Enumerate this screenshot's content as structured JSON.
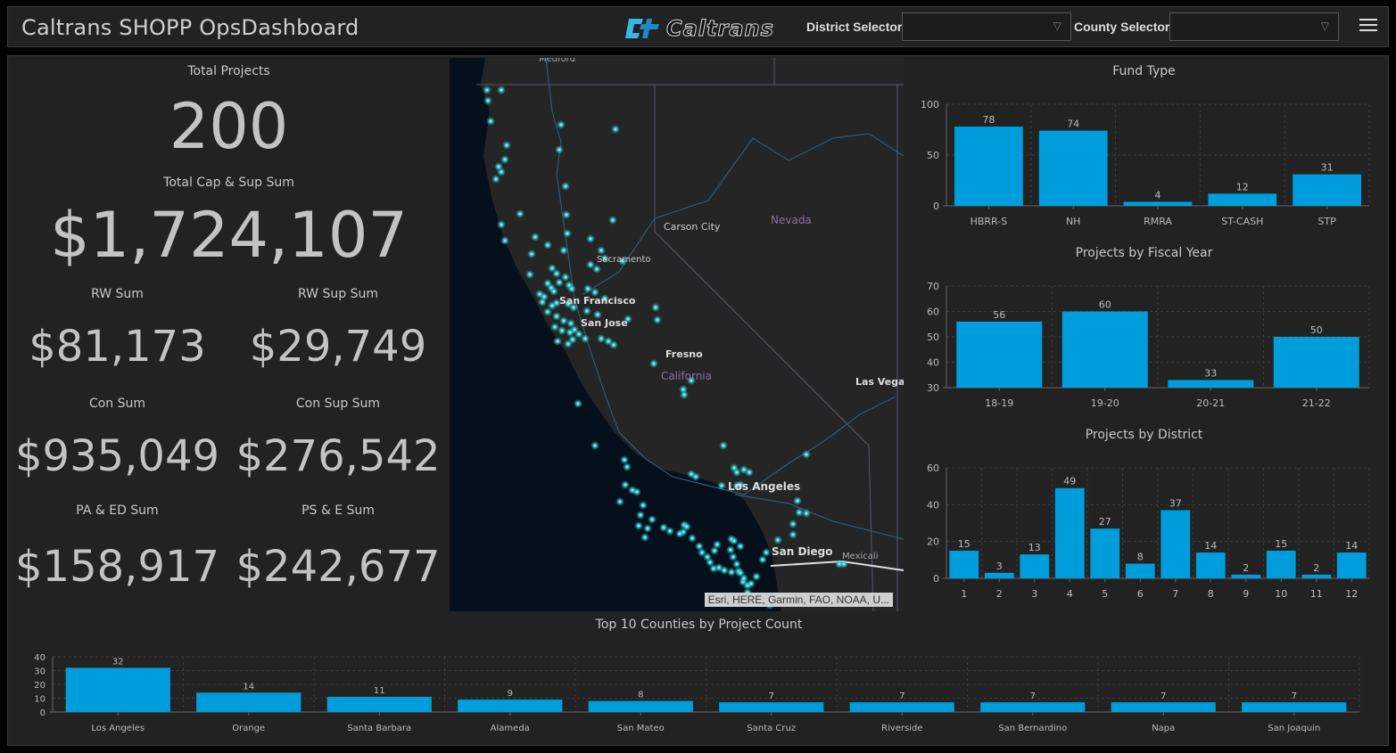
{
  "header": {
    "title": "Caltrans SHOPP OpsDashboard",
    "logo_text": "Caltrans",
    "district_selector_label": "District Selector",
    "district_selector_value": "",
    "county_selector_label": "County Selector",
    "county_selector_value": "",
    "menu_icon": "hamburger-menu-icon"
  },
  "kpis": {
    "total_projects": {
      "label": "Total Projects",
      "value": "200"
    },
    "total_cap_sup": {
      "label": "Total Cap & Sup Sum",
      "value": "$1,724,107"
    },
    "rw_sum": {
      "label": "RW Sum",
      "value": "$81,173"
    },
    "rw_sup_sum": {
      "label": "RW Sup Sum",
      "value": "$29,749"
    },
    "con_sum": {
      "label": "Con Sum",
      "value": "$935,049"
    },
    "con_sup_sum": {
      "label": "Con Sup Sum",
      "value": "$276,542"
    },
    "pa_ed_sum": {
      "label": "PA & ED Sum",
      "value": "$158,917"
    },
    "ps_e_sum": {
      "label": "PS & E Sum",
      "value": "$242,677"
    }
  },
  "map": {
    "labels": [
      "Medford",
      "Carson City",
      "Nevada",
      "Sacramento",
      "San Francisco",
      "San Jose",
      "Fresno",
      "California",
      "Las Vegas",
      "Los Angeles",
      "San Diego",
      "Mexicali"
    ],
    "attribution": "Esri, HERE, Garmin, FAO, NOAA, U..."
  },
  "colors": {
    "bar": "#009ddc",
    "background": "#222222",
    "map_point": "#2fd6dc"
  },
  "chart_data": [
    {
      "id": "fund_type",
      "type": "bar",
      "title": "Fund Type",
      "categories": [
        "HBRR-S",
        "NH",
        "RMRA",
        "ST-CASH",
        "STP"
      ],
      "values": [
        78,
        74,
        4,
        12,
        31
      ],
      "ylim": [
        0,
        100
      ],
      "yticks": [
        0,
        50,
        100
      ],
      "grid": true
    },
    {
      "id": "fiscal_year",
      "type": "bar",
      "title": "Projects by Fiscal Year",
      "categories": [
        "18-19",
        "19-20",
        "20-21",
        "21-22"
      ],
      "values": [
        56,
        60,
        33,
        50
      ],
      "ylim": [
        30,
        70
      ],
      "yticks": [
        30,
        40,
        50,
        60,
        70
      ],
      "grid": true
    },
    {
      "id": "district",
      "type": "bar",
      "title": "Projects by District",
      "categories": [
        "1",
        "2",
        "3",
        "4",
        "5",
        "6",
        "7",
        "8",
        "9",
        "10",
        "11",
        "12"
      ],
      "values": [
        15,
        3,
        13,
        49,
        27,
        8,
        37,
        14,
        2,
        15,
        2,
        14
      ],
      "ylim": [
        0,
        60
      ],
      "yticks": [
        0,
        20,
        40,
        60
      ],
      "grid": true
    },
    {
      "id": "counties",
      "type": "bar",
      "title": "Top 10 Counties by Project Count",
      "categories": [
        "Los Angeles",
        "Orange",
        "Santa Barbara",
        "Alameda",
        "San Mateo",
        "Santa Cruz",
        "Riverside",
        "San Bernardino",
        "Napa",
        "San Joaquin"
      ],
      "values": [
        32,
        14,
        11,
        9,
        8,
        7,
        7,
        7,
        7,
        7
      ],
      "ylim": [
        0,
        40
      ],
      "yticks": [
        0,
        10,
        20,
        30,
        40
      ],
      "grid": true
    }
  ]
}
